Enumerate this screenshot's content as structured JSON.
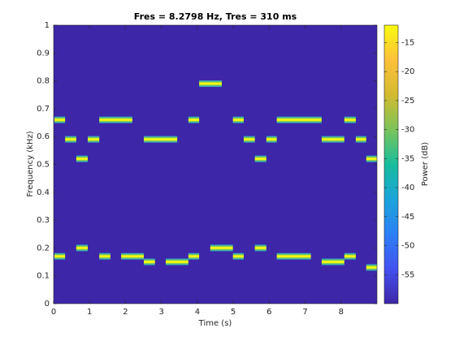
{
  "chart_data": {
    "type": "spectrogram",
    "title": "Fres = 8.2798 Hz, Tres = 310 ms",
    "x_label": "Time (s)",
    "y_label": "Frequency (kHz)",
    "colorbar_label": "Power (dB)",
    "xlim": [
      0,
      9
    ],
    "xticks": [
      0,
      1,
      2,
      3,
      4,
      5,
      6,
      7,
      8
    ],
    "ylim": [
      0,
      1
    ],
    "yticks": [
      0,
      0.1,
      0.2,
      0.3,
      0.4,
      0.5,
      0.6,
      0.7,
      0.8,
      0.9,
      1
    ],
    "clim": [
      -60,
      -12
    ],
    "cticks": [
      -55,
      -50,
      -45,
      -40,
      -35,
      -30,
      -25,
      -20,
      -15
    ],
    "colormap": [
      "#3e26a8",
      "#4352f0",
      "#2c80f6",
      "#1aa5da",
      "#17bd9d",
      "#7bc45a",
      "#d3bb2f",
      "#fdc03a",
      "#f9fb0e"
    ],
    "segments": {
      "start": [
        0.02,
        0.32,
        0.63,
        0.95,
        1.27,
        2.51,
        3.75,
        4.05,
        4.99,
        5.29,
        5.6,
        5.92,
        6.21,
        7.46,
        8.09,
        8.41,
        8.7,
        0.02,
        0.63,
        1.27,
        1.88,
        2.51,
        3.12,
        3.75,
        4.36,
        4.99,
        5.6,
        6.21,
        7.46,
        8.09,
        8.7
      ],
      "end": [
        0.32,
        0.63,
        0.95,
        1.27,
        2.19,
        3.44,
        4.05,
        4.68,
        5.29,
        5.6,
        5.92,
        6.21,
        7.46,
        8.09,
        8.41,
        8.7,
        9.0,
        0.32,
        0.95,
        1.58,
        2.51,
        2.82,
        3.75,
        4.05,
        4.99,
        5.29,
        5.92,
        7.16,
        8.09,
        8.41,
        9.0
      ],
      "frequency": [
        0.66,
        0.59,
        0.52,
        0.59,
        0.66,
        0.59,
        0.66,
        0.79,
        0.66,
        0.59,
        0.52,
        0.59,
        0.66,
        0.59,
        0.66,
        0.59,
        0.52,
        0.17,
        0.2,
        0.17,
        0.17,
        0.15,
        0.15,
        0.17,
        0.2,
        0.17,
        0.2,
        0.17,
        0.15,
        0.17,
        0.13
      ]
    }
  }
}
